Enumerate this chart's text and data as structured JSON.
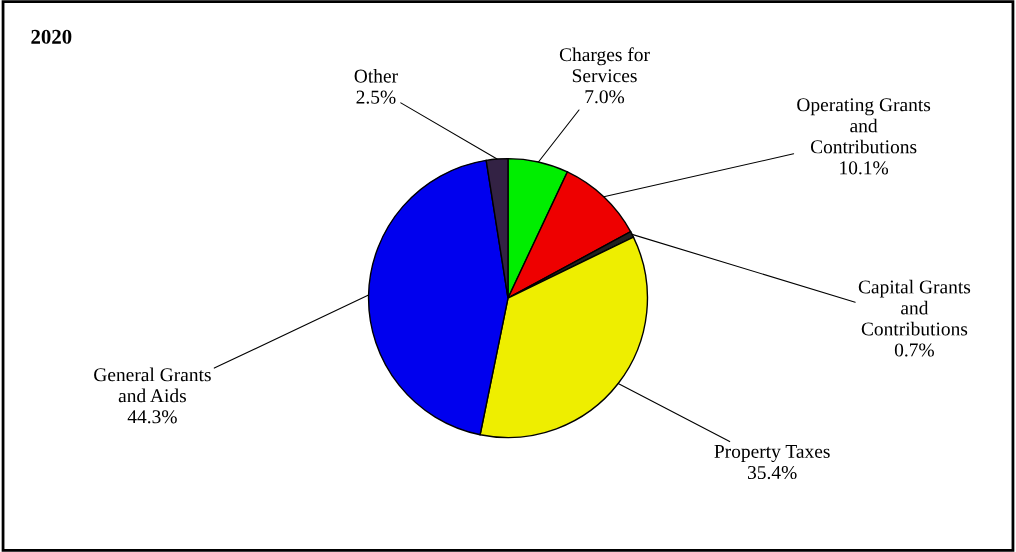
{
  "chart_data": {
    "type": "pie",
    "title": "2020",
    "categories": [
      "Charges for\nServices",
      "Operating Grants\nand\nContributions",
      "Capital Grants\nand\nContributions",
      "Property Taxes",
      "General Grants\nand Aids",
      "Other"
    ],
    "values": [
      7.0,
      10.1,
      0.7,
      35.4,
      44.3,
      2.5
    ],
    "colors": [
      "#00ee00",
      "#ee0000",
      "#202020",
      "#eeee00",
      "#0000ee",
      "#332244"
    ],
    "value_labels": [
      "7.0%",
      "10.1%",
      "0.7%",
      "35.4%",
      "44.3%",
      "2.5%"
    ],
    "legend": false
  }
}
